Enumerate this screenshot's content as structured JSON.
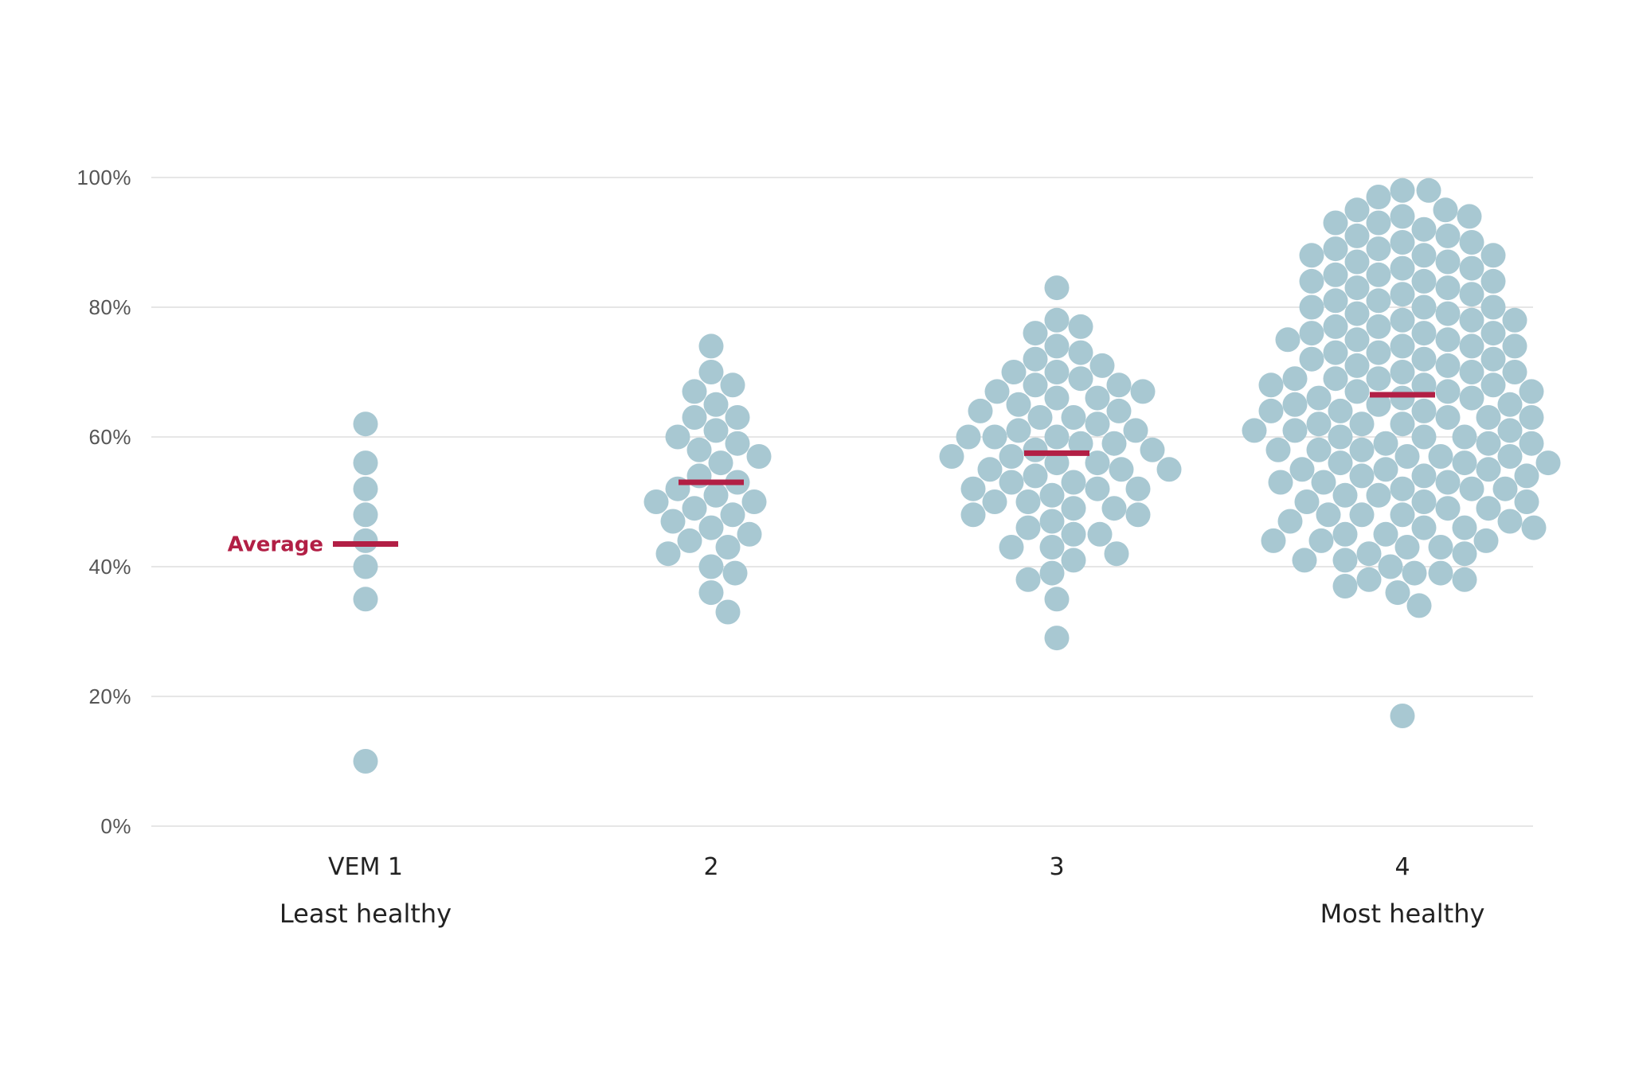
{
  "chart_data": {
    "type": "scatter",
    "subtype": "beeswarm",
    "ylim": [
      0,
      100
    ],
    "y_ticks": [
      {
        "value": 0,
        "label": "0%"
      },
      {
        "value": 20,
        "label": "20%"
      },
      {
        "value": 40,
        "label": "40%"
      },
      {
        "value": 60,
        "label": "60%"
      },
      {
        "value": 80,
        "label": "80%"
      },
      {
        "value": 100,
        "label": "100%"
      }
    ],
    "grid": true,
    "colors": {
      "dot": "#a8c8d2",
      "average": "#b21f45",
      "grid": "#dedede",
      "tick_text": "#555555",
      "label_text": "#222222"
    },
    "average_label": "Average",
    "categories": [
      {
        "label": "VEM 1",
        "sublabel": "Least healthy",
        "average": 43.5,
        "values": [
          62,
          56,
          52,
          48,
          44,
          40,
          35,
          10
        ]
      },
      {
        "label": "2",
        "sublabel": "",
        "average": 53,
        "values": [
          74,
          70,
          68,
          67,
          65,
          63,
          63,
          61,
          60,
          59,
          58,
          57,
          56,
          54,
          53,
          52,
          51,
          50,
          50,
          49,
          48,
          47,
          46,
          45,
          44,
          43,
          42,
          40,
          39,
          36,
          33
        ]
      },
      {
        "label": "3",
        "sublabel": "",
        "average": 57.5,
        "values": [
          83,
          78,
          77,
          76,
          74,
          73,
          72,
          71,
          70,
          70,
          69,
          68,
          68,
          67,
          67,
          66,
          66,
          65,
          64,
          64,
          63,
          63,
          62,
          61,
          61,
          60,
          60,
          60,
          59,
          59,
          58,
          58,
          57,
          57,
          56,
          56,
          55,
          55,
          55,
          54,
          53,
          53,
          52,
          52,
          52,
          51,
          50,
          50,
          49,
          49,
          48,
          48,
          47,
          46,
          45,
          45,
          43,
          43,
          42,
          41,
          39,
          38,
          35,
          29
        ]
      },
      {
        "label": "4",
        "sublabel": "Most healthy",
        "average": 66.5,
        "values": [
          98,
          98,
          97,
          95,
          95,
          94,
          94,
          93,
          93,
          92,
          91,
          91,
          90,
          90,
          89,
          89,
          88,
          88,
          88,
          87,
          87,
          86,
          86,
          85,
          85,
          84,
          84,
          84,
          83,
          83,
          82,
          82,
          81,
          81,
          80,
          80,
          80,
          79,
          79,
          78,
          78,
          78,
          77,
          77,
          76,
          76,
          76,
          75,
          75,
          75,
          74,
          74,
          74,
          73,
          73,
          72,
          72,
          72,
          71,
          71,
          70,
          70,
          70,
          69,
          69,
          69,
          68,
          68,
          68,
          67,
          67,
          67,
          66,
          66,
          66,
          65,
          65,
          65,
          64,
          64,
          64,
          63,
          63,
          63,
          62,
          62,
          62,
          61,
          61,
          61,
          60,
          60,
          60,
          59,
          59,
          59,
          58,
          58,
          58,
          57,
          57,
          57,
          56,
          56,
          56,
          55,
          55,
          55,
          54,
          54,
          54,
          53,
          53,
          53,
          52,
          52,
          52,
          51,
          51,
          50,
          50,
          50,
          49,
          49,
          48,
          48,
          48,
          47,
          47,
          46,
          46,
          46,
          45,
          45,
          44,
          44,
          44,
          43,
          43,
          42,
          42,
          41,
          41,
          40,
          39,
          39,
          38,
          38,
          37,
          36,
          34,
          17
        ]
      }
    ]
  }
}
